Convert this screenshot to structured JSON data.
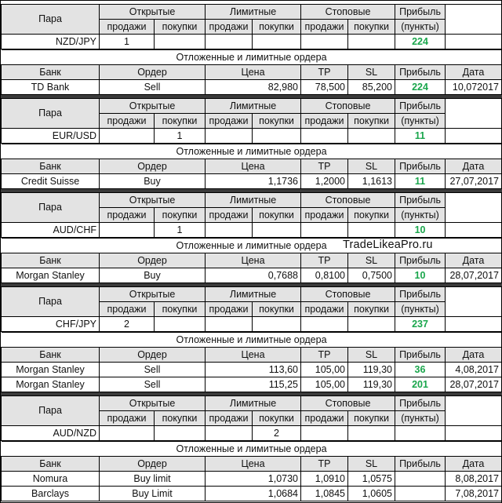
{
  "headers": {
    "pair": "Пара",
    "open": "Открытые",
    "limit": "Лимитные",
    "stop": "Стоповые",
    "profit": "Прибыль",
    "sell": "продажи",
    "buy": "покупки",
    "points": "(пункты)",
    "pending_title": "Отложенные и лимитные ордера",
    "bank": "Банк",
    "order": "Ордер",
    "price": "Цена",
    "tp": "TP",
    "sl": "SL",
    "date": "Дата"
  },
  "watermark": "TradeLikeaPro.ru",
  "blocks": [
    {
      "pair": "NZD/JPY",
      "open_sell": "1",
      "open_buy": "",
      "limit_sell": "",
      "limit_buy": "",
      "stop_sell": "",
      "stop_buy": "",
      "profit": "224",
      "orders": [
        {
          "bank": "TD Bank",
          "order": "Sell",
          "price": "82,980",
          "tp": "78,500",
          "sl": "85,200",
          "profit": "224",
          "date": "10,072017"
        }
      ]
    },
    {
      "pair": "EUR/USD",
      "open_sell": "",
      "open_buy": "1",
      "limit_sell": "",
      "limit_buy": "",
      "stop_sell": "",
      "stop_buy": "",
      "profit": "11",
      "orders": [
        {
          "bank": "Credit Suisse",
          "order": "Buy",
          "price": "1,1736",
          "tp": "1,2000",
          "sl": "1,1613",
          "profit": "11",
          "date": "27,07,2017"
        }
      ]
    },
    {
      "pair": "AUD/CHF",
      "open_sell": "",
      "open_buy": "1",
      "limit_sell": "",
      "limit_buy": "",
      "stop_sell": "",
      "stop_buy": "",
      "profit": "10",
      "orders": [
        {
          "bank": "Morgan Stanley",
          "order": "Buy",
          "price": "0,7688",
          "tp": "0,8100",
          "sl": "0,7500",
          "profit": "10",
          "date": "28,07,2017"
        }
      ]
    },
    {
      "pair": "CHF/JPY",
      "open_sell": "2",
      "open_buy": "",
      "limit_sell": "",
      "limit_buy": "",
      "stop_sell": "",
      "stop_buy": "",
      "profit": "237",
      "orders": [
        {
          "bank": "Morgan Stanley",
          "order": "Sell",
          "price": "113,60",
          "tp": "105,00",
          "sl": "119,30",
          "profit": "36",
          "date": "4,08,2017"
        },
        {
          "bank": "Morgan Stanley",
          "order": "Sell",
          "price": "115,25",
          "tp": "105,00",
          "sl": "119,30",
          "profit": "201",
          "date": "28,07,2017"
        }
      ]
    },
    {
      "pair": "AUD/NZD",
      "open_sell": "",
      "open_buy": "",
      "limit_sell": "",
      "limit_buy": "2",
      "stop_sell": "",
      "stop_buy": "",
      "profit": "",
      "orders": [
        {
          "bank": "Nomura",
          "order": "Buy limit",
          "price": "1,0730",
          "tp": "1,0910",
          "sl": "1,0575",
          "profit": "",
          "date": "8,08,2017"
        },
        {
          "bank": "Barclays",
          "order": "Buy Limit",
          "price": "1,0684",
          "tp": "1,0845",
          "sl": "1,0605",
          "profit": "",
          "date": "7,08,2017"
        }
      ]
    }
  ]
}
